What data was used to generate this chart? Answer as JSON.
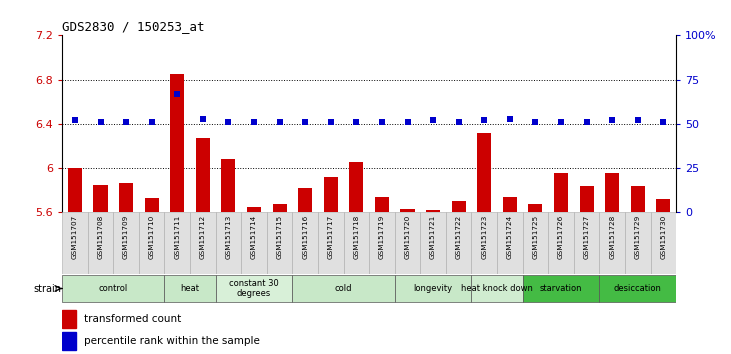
{
  "title": "GDS2830 / 150253_at",
  "samples": [
    "GSM151707",
    "GSM151708",
    "GSM151709",
    "GSM151710",
    "GSM151711",
    "GSM151712",
    "GSM151713",
    "GSM151714",
    "GSM151715",
    "GSM151716",
    "GSM151717",
    "GSM151718",
    "GSM151719",
    "GSM151720",
    "GSM151721",
    "GSM151722",
    "GSM151723",
    "GSM151724",
    "GSM151725",
    "GSM151726",
    "GSM151727",
    "GSM151728",
    "GSM151729",
    "GSM151730"
  ],
  "bar_values": [
    6.0,
    5.85,
    5.87,
    5.73,
    6.85,
    6.27,
    6.08,
    5.65,
    5.68,
    5.82,
    5.92,
    6.06,
    5.74,
    5.63,
    5.62,
    5.7,
    6.32,
    5.74,
    5.68,
    5.96,
    5.84,
    5.96,
    5.84,
    5.72
  ],
  "percentile_values": [
    52,
    51,
    51,
    51,
    67,
    53,
    51,
    51,
    51,
    51,
    51,
    51,
    51,
    51,
    52,
    51,
    52,
    53,
    51,
    51,
    51,
    52,
    52,
    51
  ],
  "bar_color": "#cc0000",
  "dot_color": "#0000cc",
  "ylim_left": [
    5.6,
    7.2
  ],
  "ylim_right": [
    0,
    100
  ],
  "yticks_left": [
    5.6,
    6.0,
    6.4,
    6.8,
    7.2
  ],
  "ytick_labels_left": [
    "5.6",
    "6",
    "6.4",
    "6.8",
    "7.2"
  ],
  "yticks_right": [
    0,
    25,
    50,
    75,
    100
  ],
  "ytick_labels_right": [
    "0",
    "25",
    "50",
    "75",
    "100%"
  ],
  "grid_values": [
    6.0,
    6.4,
    6.8
  ],
  "groups": [
    {
      "label": "control",
      "start": 0,
      "end": 3,
      "color": "#c8e8c8"
    },
    {
      "label": "heat",
      "start": 4,
      "end": 5,
      "color": "#c8e8c8"
    },
    {
      "label": "constant 30\ndegrees",
      "start": 6,
      "end": 8,
      "color": "#d8f0d8"
    },
    {
      "label": "cold",
      "start": 9,
      "end": 12,
      "color": "#c8e8c8"
    },
    {
      "label": "longevity",
      "start": 13,
      "end": 15,
      "color": "#c8e8c8"
    },
    {
      "label": "heat knock down",
      "start": 16,
      "end": 17,
      "color": "#d0ecd0"
    },
    {
      "label": "starvation",
      "start": 18,
      "end": 20,
      "color": "#44bb44"
    },
    {
      "label": "desiccation",
      "start": 21,
      "end": 23,
      "color": "#44bb44"
    }
  ],
  "legend_bar_label": "transformed count",
  "legend_dot_label": "percentile rank within the sample",
  "bar_left_color": "#cc0000",
  "tick_left_color": "#cc0000",
  "tick_right_color": "#0000cc"
}
